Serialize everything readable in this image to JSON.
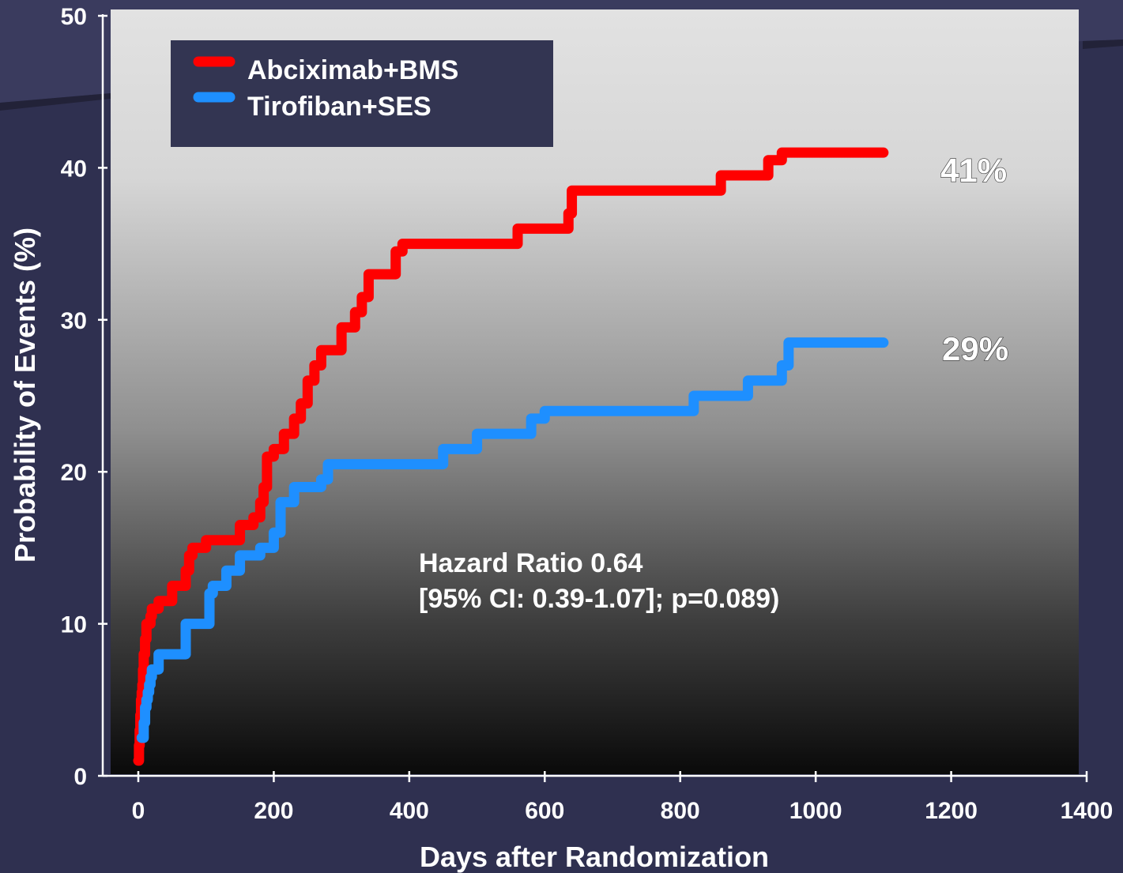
{
  "chart_data": {
    "type": "line",
    "title": "",
    "xlabel": "Days after Randomization",
    "ylabel": "Probability of Events (%)",
    "xlim": [
      0,
      1400
    ],
    "ylim": [
      0,
      50
    ],
    "x_ticks": [
      0,
      200,
      400,
      600,
      800,
      1000,
      1200,
      1400
    ],
    "y_ticks": [
      0,
      10,
      20,
      30,
      40,
      50
    ],
    "legend_position": "top-left",
    "grid": false,
    "series": [
      {
        "name": "Abciximab+BMS",
        "color": "#ff0000",
        "end_label": "41%",
        "x": [
          0,
          1,
          2,
          3,
          4,
          5,
          6,
          7,
          8,
          10,
          12,
          15,
          18,
          20,
          30,
          40,
          50,
          60,
          70,
          75,
          80,
          100,
          150,
          170,
          180,
          185,
          190,
          200,
          215,
          230,
          240,
          250,
          260,
          270,
          300,
          320,
          330,
          340,
          350,
          380,
          390,
          400,
          450,
          500,
          550,
          560,
          600,
          635,
          640,
          700,
          750,
          800,
          850,
          860,
          900,
          930,
          950,
          1000,
          1050,
          1100
        ],
        "y": [
          1.0,
          2.0,
          3.0,
          4.0,
          5.0,
          5.5,
          6.0,
          7.0,
          8.0,
          9.0,
          10.0,
          10.0,
          10.5,
          11.0,
          11.5,
          11.5,
          12.5,
          12.5,
          13.5,
          14.5,
          15.0,
          15.5,
          16.5,
          17.0,
          18.0,
          19.0,
          21.0,
          21.5,
          22.5,
          23.5,
          24.5,
          26.0,
          27.0,
          28.0,
          29.5,
          30.5,
          31.5,
          33.0,
          33.0,
          34.5,
          35.0,
          35.0,
          35.0,
          35.0,
          35.0,
          36.0,
          36.0,
          37.0,
          38.5,
          38.5,
          38.5,
          38.5,
          38.5,
          39.5,
          39.5,
          40.5,
          41.0,
          41.0,
          41.0,
          41.0
        ]
      },
      {
        "name": "Tirofiban+SES",
        "color": "#1e8fff",
        "end_label": "29%",
        "x": [
          5,
          8,
          10,
          12,
          14,
          16,
          18,
          20,
          25,
          30,
          40,
          60,
          70,
          80,
          100,
          105,
          110,
          130,
          150,
          180,
          200,
          210,
          230,
          270,
          280,
          300,
          400,
          450,
          500,
          550,
          580,
          600,
          800,
          820,
          850,
          900,
          950,
          960,
          1000,
          1050,
          1100
        ],
        "y": [
          2.5,
          3.5,
          4.5,
          5.0,
          5.5,
          6.0,
          6.5,
          7.0,
          7.0,
          8.0,
          8.0,
          8.0,
          10.0,
          10.0,
          10.0,
          12.0,
          12.5,
          13.5,
          14.5,
          15.0,
          16.0,
          18.0,
          19.0,
          19.5,
          20.5,
          20.5,
          20.5,
          21.5,
          22.5,
          22.5,
          23.5,
          24.0,
          24.0,
          25.0,
          25.0,
          26.0,
          27.0,
          28.5,
          28.5,
          28.5,
          28.5
        ]
      }
    ],
    "annotations": [
      "Hazard Ratio 0.64",
      "[95% CI: 0.39-1.07];  p=0.089)"
    ]
  },
  "colors": {
    "background": "#2f3050",
    "legend_box": "#333552",
    "red_series": "#ff0000",
    "blue_series": "#1e8fff",
    "text": "#ffffff"
  }
}
